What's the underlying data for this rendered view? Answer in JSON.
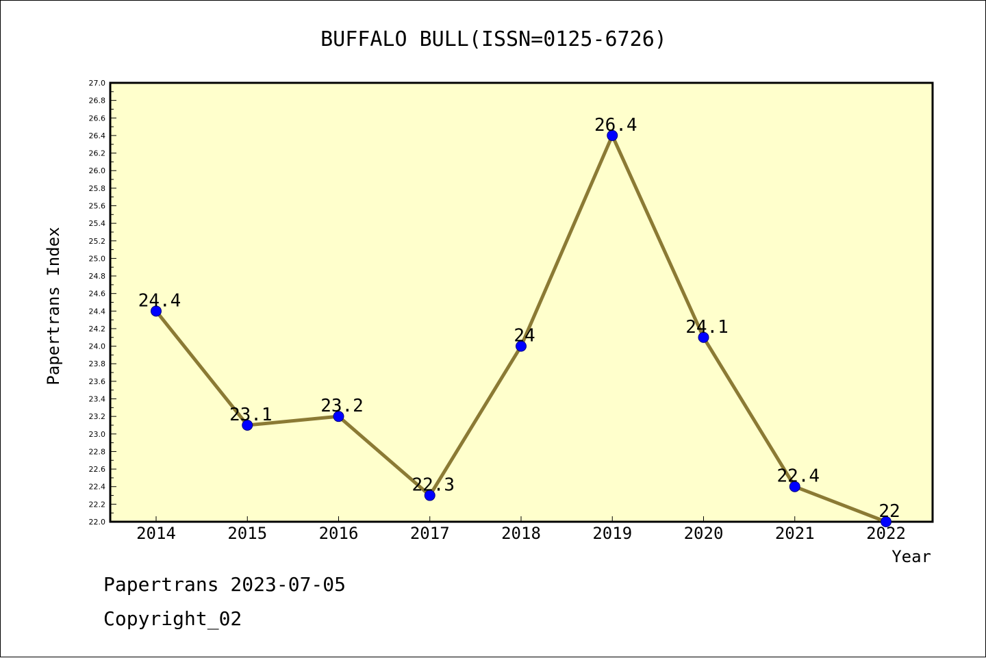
{
  "chart_data": {
    "type": "line",
    "title": "BUFFALO BULL(ISSN=0125-6726)",
    "xlabel": "Year",
    "ylabel": "Papertrans Index",
    "categories": [
      "2014",
      "2015",
      "2016",
      "2017",
      "2018",
      "2019",
      "2020",
      "2021",
      "2022"
    ],
    "series": [
      {
        "values": [
          24.4,
          23.1,
          23.2,
          22.3,
          24.0,
          26.4,
          24.1,
          22.4,
          22.0
        ],
        "data_labels": [
          "24.4",
          "23.1",
          "23.2",
          "22.3",
          "24",
          "26.4",
          "24.1",
          "22.4",
          "22"
        ]
      }
    ],
    "ylim": [
      22.0,
      27.0
    ],
    "y_major_step": 0.2,
    "y_minor_step": 0.1,
    "grid": false,
    "legend": "none",
    "colors": {
      "plot_background": "#ffffcc",
      "line": "#8b7a34",
      "marker": "#0000ff",
      "marker_edge": "#000080",
      "axis": "#000000"
    }
  },
  "footer": {
    "date_line": "Papertrans 2023-07-05",
    "copyright_line": "Copyright_02"
  }
}
